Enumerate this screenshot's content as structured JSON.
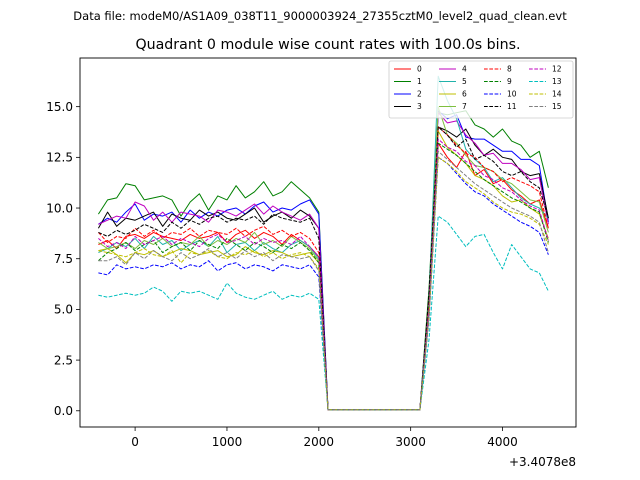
{
  "chart_data": {
    "type": "line",
    "suptitle": "Data file: modeM0/AS1A09_038T11_9000003924_27355cztM0_level2_quad_clean.evt",
    "title": "Quadrant 0 module wise count rates with 100.0s bins.",
    "xlabel": "",
    "ylabel": "",
    "x_offset_label": "+3.4078e8",
    "xlim": [
      -600,
      4800
    ],
    "ylim": [
      -0.8,
      17.4
    ],
    "xticks": [
      0,
      1000,
      2000,
      3000,
      4000
    ],
    "yticks": [
      0.0,
      2.5,
      5.0,
      7.5,
      10.0,
      12.5,
      15.0
    ],
    "xtick_labels": [
      "0",
      "1000",
      "2000",
      "3000",
      "4000"
    ],
    "ytick_labels": [
      "0.0",
      "2.5",
      "5.0",
      "7.5",
      "10.0",
      "12.5",
      "15.0"
    ],
    "legend_position": "top-right",
    "x": [
      -400,
      -300,
      -200,
      -100,
      0,
      100,
      200,
      300,
      400,
      500,
      600,
      700,
      800,
      900,
      1000,
      1100,
      1200,
      1300,
      1400,
      1500,
      1600,
      1700,
      1800,
      1900,
      2000,
      2100,
      2200,
      2300,
      2400,
      2500,
      2600,
      2700,
      2800,
      2900,
      3000,
      3100,
      3200,
      3300,
      3400,
      3500,
      3600,
      3700,
      3800,
      3900,
      4000,
      4100,
      4200,
      4300,
      4400,
      4500
    ],
    "series": [
      {
        "name": "0",
        "color": "#ff0000",
        "dash": "solid",
        "values": [
          8.2,
          8.4,
          8.0,
          8.6,
          8.7,
          8.5,
          8.8,
          8.6,
          8.5,
          8.4,
          8.7,
          8.5,
          8.6,
          8.8,
          8.3,
          8.7,
          8.9,
          8.5,
          8.8,
          8.6,
          8.2,
          8.7,
          8.4,
          8.1,
          7.6,
          0.05,
          0.05,
          0.05,
          0.05,
          0.05,
          0.05,
          0.05,
          0.05,
          0.05,
          0.05,
          0.05,
          5.0,
          13.2,
          12.5,
          12.0,
          12.8,
          11.6,
          11.9,
          11.2,
          11.4,
          10.9,
          10.6,
          10.2,
          10.4,
          9.0
        ]
      },
      {
        "name": "1",
        "color": "#008000",
        "dash": "solid",
        "values": [
          9.7,
          10.4,
          10.5,
          11.2,
          11.1,
          10.4,
          10.5,
          10.6,
          10.4,
          9.6,
          10.3,
          10.7,
          9.9,
          10.6,
          10.4,
          11.1,
          10.5,
          10.8,
          11.3,
          10.6,
          10.8,
          11.3,
          10.9,
          10.5,
          9.8,
          0.05,
          0.05,
          0.05,
          0.05,
          0.05,
          0.05,
          0.05,
          0.05,
          0.05,
          0.05,
          0.05,
          6.0,
          14.7,
          14.6,
          14.7,
          14.8,
          14.1,
          13.9,
          13.5,
          13.9,
          13.3,
          13.1,
          12.5,
          12.8,
          11.0
        ]
      },
      {
        "name": "2",
        "color": "#0000ff",
        "dash": "solid",
        "values": [
          9.2,
          9.5,
          9.3,
          9.8,
          10.2,
          9.4,
          9.7,
          9.6,
          9.8,
          9.3,
          9.9,
          9.5,
          9.8,
          9.6,
          9.9,
          10.0,
          9.7,
          10.1,
          10.3,
          9.8,
          10.0,
          9.9,
          10.2,
          10.4,
          9.7,
          0.05,
          0.05,
          0.05,
          0.05,
          0.05,
          0.05,
          0.05,
          0.05,
          0.05,
          0.05,
          0.05,
          5.5,
          14.8,
          14.4,
          14.6,
          13.5,
          13.4,
          13.4,
          13.1,
          12.8,
          12.8,
          12.4,
          12.4,
          12.1,
          9.3
        ]
      },
      {
        "name": "3",
        "color": "#000000",
        "dash": "solid",
        "values": [
          9.0,
          9.8,
          9.1,
          9.5,
          9.4,
          9.6,
          9.8,
          9.1,
          9.7,
          9.5,
          9.4,
          9.9,
          9.6,
          9.8,
          9.5,
          9.4,
          9.7,
          10.0,
          9.3,
          9.6,
          9.8,
          9.5,
          9.9,
          9.6,
          9.0,
          0.05,
          0.05,
          0.05,
          0.05,
          0.05,
          0.05,
          0.05,
          0.05,
          0.05,
          0.05,
          0.05,
          5.2,
          14.0,
          13.8,
          13.5,
          13.9,
          13.1,
          12.6,
          12.9,
          12.5,
          12.4,
          11.8,
          11.6,
          11.7,
          9.5
        ]
      },
      {
        "name": "4",
        "color": "#bf00bf",
        "dash": "solid",
        "values": [
          9.2,
          9.4,
          9.6,
          9.5,
          10.3,
          10.1,
          9.4,
          9.8,
          9.3,
          9.8,
          9.7,
          9.6,
          9.3,
          9.9,
          9.8,
          9.6,
          9.9,
          10.2,
          9.7,
          10.1,
          9.8,
          9.6,
          9.4,
          9.7,
          9.0,
          0.05,
          0.05,
          0.05,
          0.05,
          0.05,
          0.05,
          0.05,
          0.05,
          0.05,
          0.05,
          0.05,
          5.3,
          14.7,
          14.2,
          14.3,
          13.6,
          13.2,
          12.6,
          12.7,
          12.2,
          12.2,
          11.9,
          11.4,
          11.5,
          9.2
        ]
      },
      {
        "name": "5",
        "color": "#20b2aa",
        "dash": "solid",
        "values": [
          7.8,
          8.0,
          8.3,
          8.1,
          8.5,
          8.0,
          8.6,
          8.2,
          8.4,
          7.9,
          8.2,
          8.4,
          8.1,
          8.6,
          7.8,
          8.2,
          8.3,
          7.9,
          8.3,
          8.0,
          7.8,
          8.2,
          8.4,
          8.1,
          7.5,
          0.05,
          0.05,
          0.05,
          0.05,
          0.05,
          0.05,
          0.05,
          0.05,
          0.05,
          0.05,
          0.05,
          5.5,
          16.5,
          15.3,
          14.4,
          12.9,
          12.4,
          12.0,
          11.3,
          11.5,
          11.0,
          10.5,
          10.2,
          10.0,
          9.5
        ]
      },
      {
        "name": "6",
        "color": "#bfbf00",
        "dash": "solid",
        "values": [
          7.9,
          8.0,
          7.7,
          7.3,
          7.8,
          7.7,
          7.9,
          7.6,
          7.8,
          8.0,
          7.9,
          7.7,
          7.8,
          7.9,
          7.6,
          7.7,
          8.1,
          7.8,
          7.7,
          7.9,
          7.8,
          7.6,
          7.7,
          7.8,
          7.3,
          0.05,
          0.05,
          0.05,
          0.05,
          0.05,
          0.05,
          0.05,
          0.05,
          0.05,
          0.05,
          0.05,
          5.0,
          13.8,
          13.0,
          12.6,
          12.2,
          11.6,
          11.4,
          11.1,
          10.6,
          10.3,
          10.4,
          10.0,
          9.7,
          8.5
        ]
      },
      {
        "name": "7",
        "color": "#7fbf3f",
        "dash": "solid",
        "values": [
          8.3,
          8.0,
          8.1,
          8.3,
          8.0,
          8.4,
          8.2,
          8.5,
          8.1,
          8.3,
          8.2,
          8.6,
          8.1,
          8.4,
          8.2,
          8.5,
          8.3,
          8.8,
          8.2,
          8.4,
          8.1,
          8.6,
          8.3,
          8.0,
          7.4,
          0.05,
          0.05,
          0.05,
          0.05,
          0.05,
          0.05,
          0.05,
          0.05,
          0.05,
          0.05,
          0.05,
          5.0,
          15.0,
          13.6,
          13.2,
          12.6,
          12.1,
          12.0,
          11.8,
          11.4,
          11.2,
          10.8,
          10.4,
          10.3,
          8.8
        ]
      },
      {
        "name": "8",
        "color": "#ff0000",
        "dash": "dashed",
        "values": [
          8.8,
          8.3,
          8.6,
          8.5,
          9.0,
          8.6,
          8.9,
          8.5,
          8.8,
          8.7,
          9.0,
          8.6,
          8.9,
          8.8,
          8.7,
          9.0,
          8.6,
          8.9,
          9.1,
          8.7,
          8.9,
          8.6,
          8.8,
          8.5,
          7.8,
          0.05,
          0.05,
          0.05,
          0.05,
          0.05,
          0.05,
          0.05,
          0.05,
          0.05,
          0.05,
          0.05,
          5.3,
          14.0,
          13.6,
          13.1,
          12.7,
          12.5,
          12.0,
          11.8,
          11.3,
          11.5,
          11.3,
          11.1,
          10.8,
          9.0
        ]
      },
      {
        "name": "9",
        "color": "#008000",
        "dash": "dashed",
        "values": [
          7.4,
          7.8,
          8.0,
          8.3,
          7.9,
          8.2,
          8.4,
          7.8,
          8.1,
          8.3,
          7.9,
          8.4,
          8.2,
          8.0,
          8.5,
          8.2,
          7.9,
          8.3,
          8.1,
          7.8,
          8.2,
          8.0,
          8.3,
          7.9,
          7.3,
          0.05,
          0.05,
          0.05,
          0.05,
          0.05,
          0.05,
          0.05,
          0.05,
          0.05,
          0.05,
          0.05,
          4.8,
          13.2,
          12.9,
          12.6,
          12.2,
          11.8,
          11.4,
          11.1,
          10.8,
          10.5,
          10.3,
          10.0,
          9.8,
          8.3
        ]
      },
      {
        "name": "10",
        "color": "#0000ff",
        "dash": "dashed",
        "values": [
          6.8,
          6.7,
          7.2,
          7.0,
          7.1,
          7.0,
          7.2,
          7.1,
          7.3,
          7.0,
          7.2,
          7.1,
          7.4,
          6.9,
          7.2,
          7.3,
          7.0,
          7.2,
          7.1,
          6.9,
          7.2,
          7.1,
          7.0,
          7.2,
          6.6,
          0.05,
          0.05,
          0.05,
          0.05,
          0.05,
          0.05,
          0.05,
          0.05,
          0.05,
          0.05,
          0.05,
          4.5,
          12.5,
          12.2,
          11.7,
          11.2,
          10.8,
          10.6,
          10.2,
          9.9,
          9.6,
          9.3,
          9.1,
          8.8,
          7.7
        ]
      },
      {
        "name": "11",
        "color": "#000000",
        "dash": "dashed",
        "values": [
          8.8,
          8.6,
          8.9,
          8.7,
          8.9,
          9.2,
          9.0,
          8.8,
          9.3,
          9.0,
          9.4,
          9.2,
          9.5,
          9.6,
          9.3,
          9.5,
          9.4,
          9.6,
          9.2,
          9.7,
          9.5,
          9.4,
          9.3,
          9.5,
          8.5,
          0.05,
          0.05,
          0.05,
          0.05,
          0.05,
          0.05,
          0.05,
          0.05,
          0.05,
          0.05,
          0.05,
          5.8,
          14.0,
          13.6,
          13.0,
          13.4,
          12.4,
          12.6,
          12.3,
          11.8,
          11.6,
          11.8,
          11.3,
          11.0,
          9.5
        ]
      },
      {
        "name": "12",
        "color": "#bf00bf",
        "dash": "dashed",
        "values": [
          8.5,
          8.1,
          8.3,
          8.0,
          8.6,
          8.2,
          8.4,
          8.6,
          8.2,
          8.5,
          8.3,
          8.1,
          8.5,
          8.7,
          8.3,
          8.4,
          8.6,
          8.2,
          8.5,
          8.3,
          8.4,
          8.2,
          8.6,
          8.1,
          7.6,
          0.05,
          0.05,
          0.05,
          0.05,
          0.05,
          0.05,
          0.05,
          0.05,
          0.05,
          0.05,
          0.05,
          5.0,
          13.4,
          13.0,
          12.8,
          12.3,
          12.1,
          11.6,
          11.4,
          11.0,
          10.8,
          10.4,
          10.1,
          9.9,
          8.4
        ]
      },
      {
        "name": "13",
        "color": "#00bfbf",
        "dash": "dashed",
        "values": [
          5.7,
          5.6,
          5.7,
          5.8,
          5.7,
          5.8,
          6.1,
          5.9,
          5.4,
          5.9,
          5.8,
          5.9,
          5.7,
          5.5,
          6.3,
          5.8,
          5.6,
          5.5,
          5.7,
          5.9,
          5.5,
          5.7,
          5.6,
          5.8,
          5.5,
          0.05,
          0.05,
          0.05,
          0.05,
          0.05,
          0.05,
          0.05,
          0.05,
          0.05,
          0.05,
          0.05,
          3.5,
          9.6,
          9.3,
          8.7,
          8.1,
          8.6,
          8.7,
          7.8,
          7.0,
          8.2,
          7.6,
          7.0,
          6.8,
          5.9
        ]
      },
      {
        "name": "14",
        "color": "#bfbf00",
        "dash": "dashed",
        "values": [
          7.9,
          7.8,
          7.7,
          7.6,
          7.8,
          8.0,
          7.7,
          7.6,
          7.9,
          7.3,
          7.8,
          7.7,
          7.9,
          7.6,
          7.5,
          7.8,
          7.7,
          7.9,
          7.6,
          7.8,
          7.5,
          7.7,
          7.8,
          7.6,
          7.0,
          0.05,
          0.05,
          0.05,
          0.05,
          0.05,
          0.05,
          0.05,
          0.05,
          0.05,
          0.05,
          0.05,
          4.6,
          12.5,
          12.2,
          11.8,
          11.3,
          11.0,
          10.7,
          10.3,
          10.0,
          9.8,
          9.7,
          9.5,
          9.2,
          8.2
        ]
      },
      {
        "name": "15",
        "color": "#808080",
        "dash": "dashed",
        "values": [
          7.4,
          7.4,
          7.6,
          7.2,
          7.8,
          7.5,
          7.9,
          7.6,
          7.4,
          7.8,
          7.5,
          7.7,
          8.0,
          7.6,
          7.8,
          7.5,
          7.9,
          7.6,
          7.8,
          7.4,
          7.7,
          7.6,
          7.5,
          7.6,
          6.9,
          0.05,
          0.05,
          0.05,
          0.05,
          0.05,
          0.05,
          0.05,
          0.05,
          0.05,
          0.05,
          0.05,
          4.7,
          12.8,
          12.4,
          12.0,
          11.6,
          11.2,
          10.9,
          10.6,
          10.3,
          10.0,
          9.8,
          9.6,
          9.3,
          7.8
        ]
      }
    ]
  }
}
